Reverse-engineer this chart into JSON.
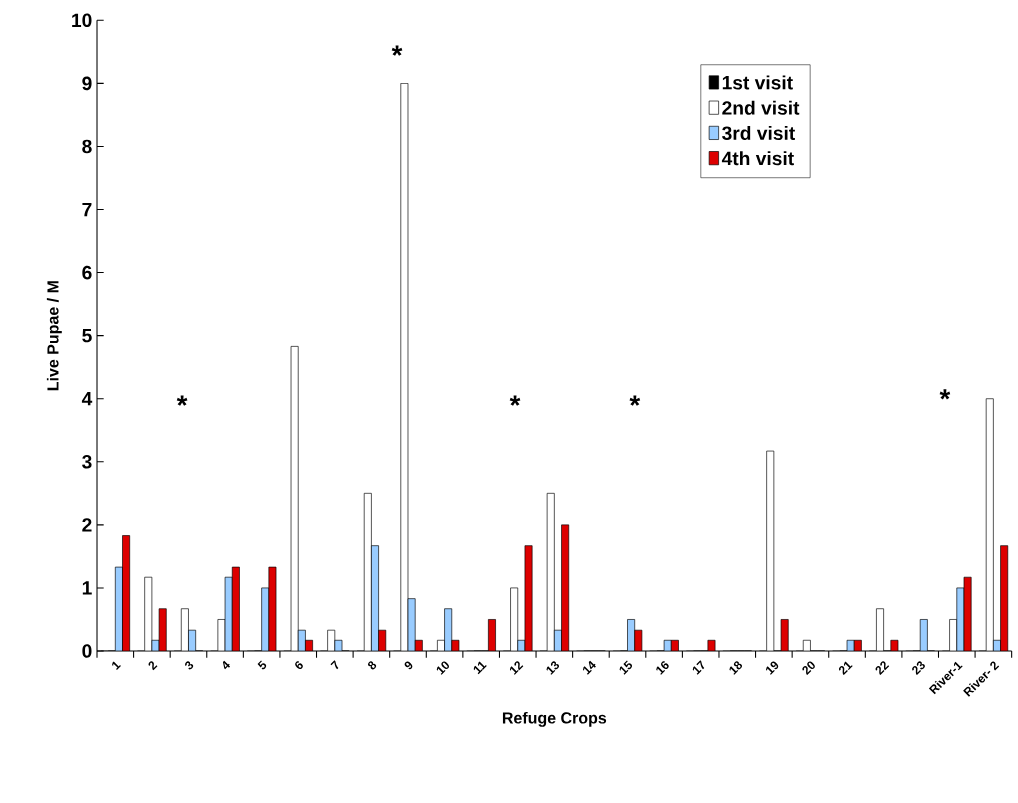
{
  "chart_data": {
    "type": "bar",
    "xlabel": "Refuge Crops",
    "ylabel": "Live Pupae / M",
    "categories": [
      "1",
      "2",
      "3",
      "4",
      "5",
      "6",
      "7",
      "8",
      "9",
      "10",
      "11",
      "12",
      "13",
      "14",
      "15",
      "16",
      "17",
      "18",
      "19",
      "20",
      "21",
      "22",
      "23",
      "River-1",
      "River- 2"
    ],
    "series": [
      {
        "name": "1st visit",
        "color": "#000000",
        "values": [
          0,
          0,
          0,
          0,
          0,
          0,
          0,
          0,
          0,
          0,
          0,
          0,
          0,
          0,
          0,
          0,
          0,
          0,
          0,
          0,
          0,
          0,
          0,
          0,
          0
        ]
      },
      {
        "name": "2nd visit",
        "color": "#ffffff",
        "values": [
          0,
          1.17,
          0.67,
          0.5,
          0,
          4.83,
          0.33,
          2.5,
          9.0,
          0.17,
          0,
          1.0,
          2.5,
          0,
          0,
          0,
          0,
          0,
          3.17,
          0.17,
          0,
          0.67,
          0,
          0.5,
          4.0
        ]
      },
      {
        "name": "3rd visit",
        "color": "#99ccff",
        "values": [
          1.33,
          0.17,
          0.33,
          1.17,
          1.0,
          0.33,
          0.17,
          1.67,
          0.83,
          0.67,
          0,
          0.17,
          0.33,
          0,
          0.5,
          0.17,
          0,
          0,
          0,
          0,
          0.17,
          0,
          0.5,
          1.0,
          0.17
        ]
      },
      {
        "name": "4th visit",
        "color": "#dd0000",
        "values": [
          1.83,
          0.67,
          0,
          1.33,
          1.33,
          0.17,
          0,
          0.33,
          0.17,
          0.17,
          0.5,
          1.67,
          2.0,
          0,
          0.33,
          0.17,
          0.17,
          0,
          0.5,
          0,
          0.17,
          0.17,
          0,
          1.17,
          1.67
        ]
      }
    ],
    "ylim": [
      0,
      10
    ],
    "yticks": [
      0,
      1,
      2,
      3,
      4,
      5,
      6,
      7,
      8,
      9,
      10
    ],
    "legend": "top right",
    "annotations": [
      "*",
      "*",
      "*",
      "*",
      "*"
    ]
  }
}
